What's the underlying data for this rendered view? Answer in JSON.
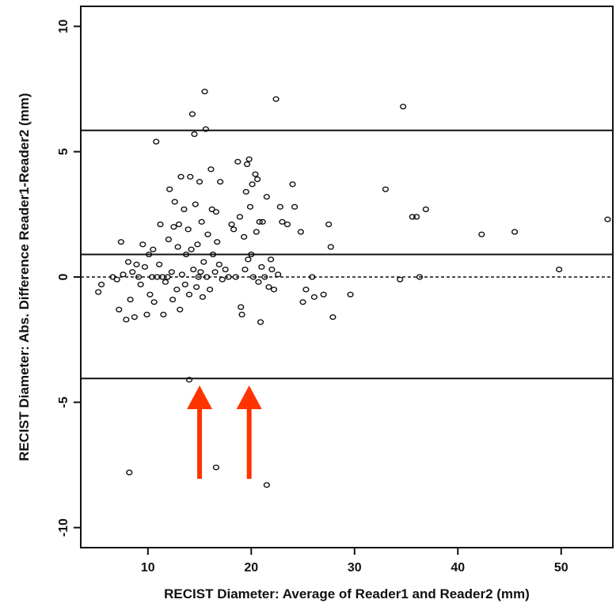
{
  "chart_data": {
    "type": "scatter",
    "title": "",
    "xlabel": "RECIST Diameter: Average of Reader1 and Reader2 (mm)",
    "ylabel": "RECIST Diameter: Abs. Difference Reader1-Reader2 (mm)",
    "xlim": [
      3.5,
      55
    ],
    "ylim": [
      -10.8,
      10.8
    ],
    "x_ticks": [
      10,
      20,
      30,
      40,
      50
    ],
    "x_tick_labels": [
      "10",
      "20",
      "30",
      "40",
      "50"
    ],
    "y_ticks": [
      10,
      5,
      0,
      -5,
      -10
    ],
    "y_tick_labels": [
      "10",
      "5",
      "0",
      "-5",
      "-10"
    ],
    "grid": false,
    "reference_lines": [
      {
        "y": 5.85,
        "style": "solid",
        "role": "upper limit of agreement"
      },
      {
        "y": 0.9,
        "style": "solid",
        "role": "mean difference"
      },
      {
        "y": 0,
        "style": "dashed",
        "role": "zero difference"
      },
      {
        "y": -4.05,
        "style": "solid",
        "role": "lower limit of agreement"
      }
    ],
    "arrows": [
      {
        "x": 15.0,
        "color": "#ff3300",
        "direction": "up"
      },
      {
        "x": 19.8,
        "color": "#ff3300",
        "direction": "up"
      }
    ],
    "points_color": "#111111",
    "points": [
      {
        "x": 5.2,
        "y": -0.6
      },
      {
        "x": 5.5,
        "y": -0.3
      },
      {
        "x": 6.6,
        "y": 0.0
      },
      {
        "x": 7.0,
        "y": -0.1
      },
      {
        "x": 7.2,
        "y": -1.3
      },
      {
        "x": 7.4,
        "y": 1.4
      },
      {
        "x": 7.6,
        "y": 0.1
      },
      {
        "x": 7.9,
        "y": -1.7
      },
      {
        "x": 8.1,
        "y": 0.6
      },
      {
        "x": 8.3,
        "y": -0.9
      },
      {
        "x": 8.5,
        "y": 0.2
      },
      {
        "x": 8.7,
        "y": -1.6
      },
      {
        "x": 8.9,
        "y": 0.5
      },
      {
        "x": 9.1,
        "y": 0.0
      },
      {
        "x": 9.3,
        "y": -0.3
      },
      {
        "x": 9.5,
        "y": 1.3
      },
      {
        "x": 9.7,
        "y": 0.4
      },
      {
        "x": 9.9,
        "y": -1.5
      },
      {
        "x": 10.1,
        "y": 0.9
      },
      {
        "x": 10.2,
        "y": -0.7
      },
      {
        "x": 10.4,
        "y": 0.0
      },
      {
        "x": 10.5,
        "y": 1.1
      },
      {
        "x": 10.6,
        "y": -1.0
      },
      {
        "x": 10.8,
        "y": 5.4
      },
      {
        "x": 10.9,
        "y": 0.0
      },
      {
        "x": 11.1,
        "y": 0.5
      },
      {
        "x": 11.2,
        "y": 2.1
      },
      {
        "x": 11.4,
        "y": 0.0
      },
      {
        "x": 11.5,
        "y": -1.5
      },
      {
        "x": 11.7,
        "y": -0.2
      },
      {
        "x": 11.9,
        "y": 0.0
      },
      {
        "x": 12.0,
        "y": 1.5
      },
      {
        "x": 12.1,
        "y": 3.5
      },
      {
        "x": 12.3,
        "y": 0.2
      },
      {
        "x": 12.4,
        "y": -0.9
      },
      {
        "x": 12.5,
        "y": 2.0
      },
      {
        "x": 12.6,
        "y": 3.0
      },
      {
        "x": 12.8,
        "y": -0.5
      },
      {
        "x": 12.9,
        "y": 1.2
      },
      {
        "x": 13.0,
        "y": 2.1
      },
      {
        "x": 13.1,
        "y": -1.3
      },
      {
        "x": 13.2,
        "y": 4.0
      },
      {
        "x": 13.3,
        "y": 0.1
      },
      {
        "x": 13.5,
        "y": 2.7
      },
      {
        "x": 13.6,
        "y": -0.3
      },
      {
        "x": 13.7,
        "y": 0.9
      },
      {
        "x": 13.9,
        "y": 1.9
      },
      {
        "x": 14.0,
        "y": -0.7
      },
      {
        "x": 14.1,
        "y": 4.0
      },
      {
        "x": 14.2,
        "y": 1.1
      },
      {
        "x": 14.3,
        "y": 6.5
      },
      {
        "x": 14.4,
        "y": 0.3
      },
      {
        "x": 14.5,
        "y": 5.7
      },
      {
        "x": 14.6,
        "y": 2.9
      },
      {
        "x": 14.7,
        "y": -0.4
      },
      {
        "x": 14.8,
        "y": 1.3
      },
      {
        "x": 14.9,
        "y": 0.0
      },
      {
        "x": 15.0,
        "y": 3.8
      },
      {
        "x": 15.1,
        "y": 0.2
      },
      {
        "x": 15.2,
        "y": 2.2
      },
      {
        "x": 15.3,
        "y": -0.8
      },
      {
        "x": 15.4,
        "y": 0.6
      },
      {
        "x": 15.5,
        "y": 7.4
      },
      {
        "x": 15.6,
        "y": 5.9
      },
      {
        "x": 15.7,
        "y": 0.0
      },
      {
        "x": 15.8,
        "y": 1.7
      },
      {
        "x": 16.0,
        "y": -0.5
      },
      {
        "x": 16.1,
        "y": 4.3
      },
      {
        "x": 16.2,
        "y": 2.7
      },
      {
        "x": 16.3,
        "y": 0.9
      },
      {
        "x": 16.5,
        "y": 0.2
      },
      {
        "x": 16.6,
        "y": 2.6
      },
      {
        "x": 16.7,
        "y": 1.4
      },
      {
        "x": 16.9,
        "y": 0.5
      },
      {
        "x": 17.0,
        "y": 3.8
      },
      {
        "x": 17.2,
        "y": -0.1
      },
      {
        "x": 17.5,
        "y": 0.3
      },
      {
        "x": 17.8,
        "y": 0.0
      },
      {
        "x": 18.1,
        "y": 2.1
      },
      {
        "x": 18.3,
        "y": 1.9
      },
      {
        "x": 18.5,
        "y": 0.0
      },
      {
        "x": 18.7,
        "y": 4.6
      },
      {
        "x": 18.9,
        "y": 2.4
      },
      {
        "x": 19.0,
        "y": -1.2
      },
      {
        "x": 19.1,
        "y": -1.5
      },
      {
        "x": 19.3,
        "y": 1.6
      },
      {
        "x": 19.4,
        "y": 0.3
      },
      {
        "x": 19.5,
        "y": 3.4
      },
      {
        "x": 19.6,
        "y": 4.5
      },
      {
        "x": 19.7,
        "y": 0.7
      },
      {
        "x": 19.8,
        "y": 4.7
      },
      {
        "x": 19.9,
        "y": 2.8
      },
      {
        "x": 20.0,
        "y": 0.9
      },
      {
        "x": 20.1,
        "y": 3.7
      },
      {
        "x": 20.2,
        "y": 0.0
      },
      {
        "x": 20.4,
        "y": 4.1
      },
      {
        "x": 20.5,
        "y": 1.8
      },
      {
        "x": 20.6,
        "y": 3.9
      },
      {
        "x": 20.7,
        "y": -0.2
      },
      {
        "x": 20.8,
        "y": 2.2
      },
      {
        "x": 20.9,
        "y": -1.8
      },
      {
        "x": 21.0,
        "y": 0.4
      },
      {
        "x": 21.1,
        "y": 2.2
      },
      {
        "x": 21.3,
        "y": 0.0
      },
      {
        "x": 21.5,
        "y": 3.2
      },
      {
        "x": 21.7,
        "y": -0.4
      },
      {
        "x": 21.9,
        "y": 0.7
      },
      {
        "x": 22.0,
        "y": 0.3
      },
      {
        "x": 22.2,
        "y": -0.5
      },
      {
        "x": 22.4,
        "y": 7.1
      },
      {
        "x": 22.6,
        "y": 0.1
      },
      {
        "x": 22.8,
        "y": 2.8
      },
      {
        "x": 23.0,
        "y": 2.2
      },
      {
        "x": 23.5,
        "y": 2.1
      },
      {
        "x": 24.0,
        "y": 3.7
      },
      {
        "x": 24.2,
        "y": 2.8
      },
      {
        "x": 24.8,
        "y": 1.8
      },
      {
        "x": 25.0,
        "y": -1.0
      },
      {
        "x": 25.3,
        "y": -0.5
      },
      {
        "x": 25.9,
        "y": 0.0
      },
      {
        "x": 26.1,
        "y": -0.8
      },
      {
        "x": 27.0,
        "y": -0.7
      },
      {
        "x": 27.5,
        "y": 2.1
      },
      {
        "x": 27.7,
        "y": 1.2
      },
      {
        "x": 27.9,
        "y": -1.6
      },
      {
        "x": 29.6,
        "y": -0.7
      },
      {
        "x": 33.0,
        "y": 3.5
      },
      {
        "x": 34.4,
        "y": -0.1
      },
      {
        "x": 34.7,
        "y": 6.8
      },
      {
        "x": 35.6,
        "y": 2.4
      },
      {
        "x": 36.0,
        "y": 2.4
      },
      {
        "x": 36.3,
        "y": 0.0
      },
      {
        "x": 36.9,
        "y": 2.7
      },
      {
        "x": 42.3,
        "y": 1.7
      },
      {
        "x": 45.5,
        "y": 1.8
      },
      {
        "x": 49.8,
        "y": 0.3
      },
      {
        "x": 54.5,
        "y": 2.3
      },
      {
        "x": 14.0,
        "y": -4.1
      },
      {
        "x": 8.2,
        "y": -7.8
      },
      {
        "x": 16.6,
        "y": -7.6
      },
      {
        "x": 21.5,
        "y": -8.3
      }
    ]
  }
}
